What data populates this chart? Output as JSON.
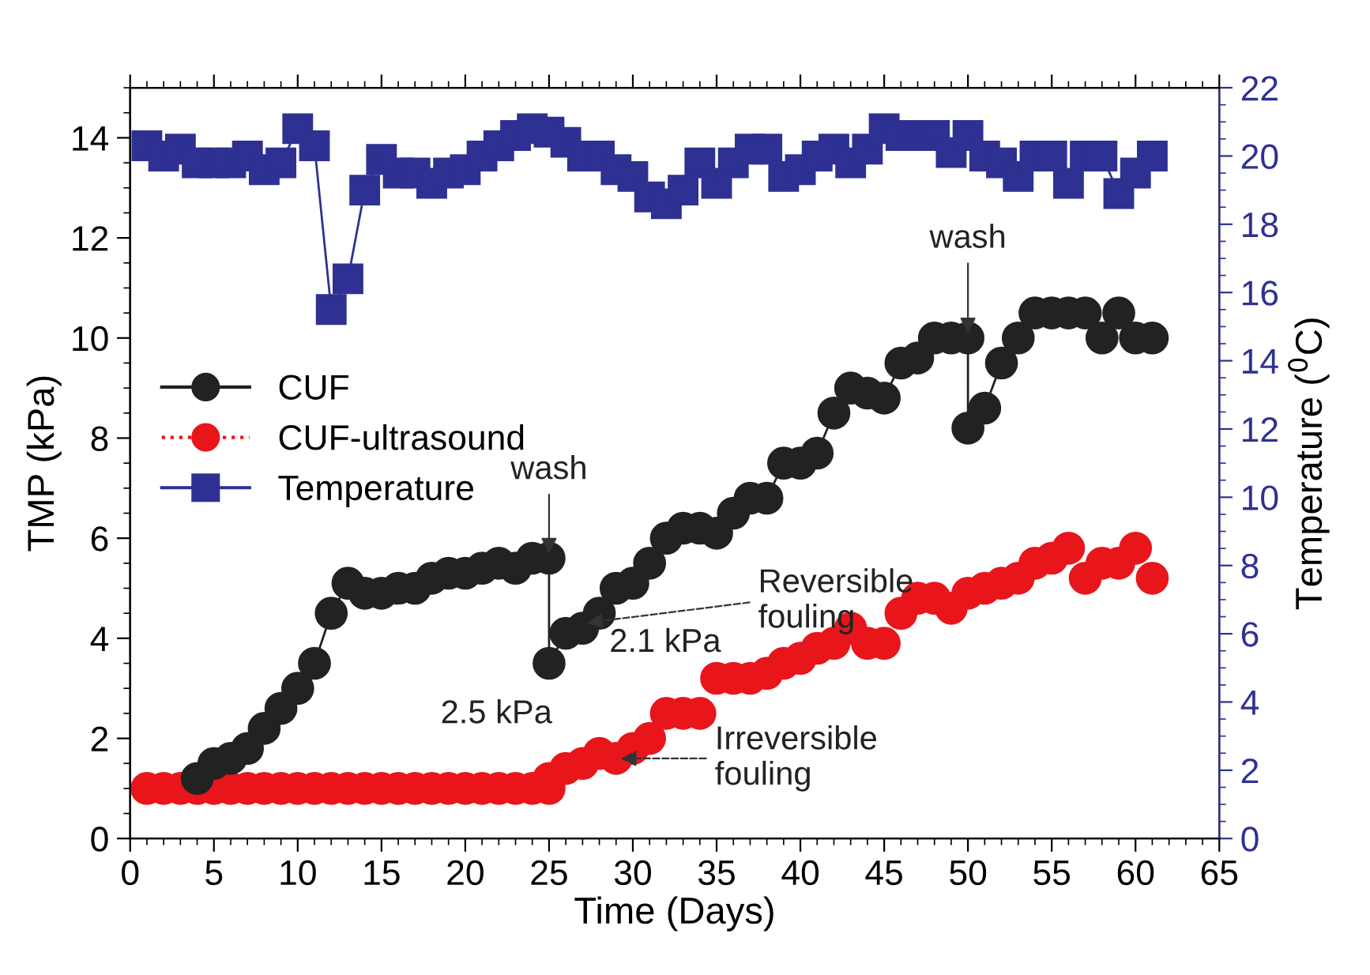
{
  "chart_data": {
    "type": "line",
    "xlabel": "Time (Days)",
    "ylabel": "TMP (kPa)",
    "y2label": "Temperature ($^{0}$C)",
    "xlim": [
      0,
      65
    ],
    "xticks": [
      0,
      5,
      10,
      15,
      20,
      25,
      30,
      35,
      40,
      45,
      50,
      55,
      60,
      65
    ],
    "ylim": [
      0,
      15
    ],
    "yticks": [
      0,
      2,
      4,
      6,
      8,
      10,
      12,
      14
    ],
    "y2lim": [
      0,
      22
    ],
    "y2ticks": [
      0,
      2,
      4,
      6,
      8,
      10,
      12,
      14,
      16,
      18,
      20,
      22
    ],
    "legend": "left",
    "grid": false,
    "series": [
      {
        "name": "CUF",
        "color": "#222222",
        "marker": "circle",
        "line_style": "solid",
        "x": [
          4,
          5,
          6,
          7,
          8,
          9,
          10,
          11,
          12,
          13,
          14,
          15,
          16,
          17,
          18,
          19,
          20,
          21,
          22,
          23,
          24,
          25,
          25,
          26,
          27,
          28,
          29,
          30,
          31,
          32,
          33,
          34,
          35,
          36,
          37,
          38,
          39,
          40,
          41,
          42,
          43,
          44,
          45,
          46,
          47,
          48,
          49,
          50,
          50,
          51,
          52,
          53,
          54,
          55,
          56,
          57,
          58,
          59,
          60,
          61
        ],
        "values": [
          1.2,
          1.5,
          1.6,
          1.8,
          2.2,
          2.6,
          3.0,
          3.5,
          4.5,
          5.1,
          4.9,
          4.9,
          5.0,
          5.0,
          5.2,
          5.3,
          5.3,
          5.4,
          5.5,
          5.4,
          5.6,
          5.6,
          3.5,
          4.1,
          4.2,
          4.5,
          5.0,
          5.1,
          5.5,
          6.0,
          6.2,
          6.2,
          6.1,
          6.5,
          6.8,
          6.8,
          7.5,
          7.5,
          7.7,
          8.5,
          9.0,
          8.9,
          8.8,
          9.5,
          9.6,
          10.0,
          10.0,
          10.0,
          8.2,
          8.6,
          9.5,
          10.0,
          10.5,
          10.5,
          10.5,
          10.5,
          10.0,
          10.5,
          10.0,
          10.0
        ]
      },
      {
        "name": "CUF-ultrasound",
        "type": "scatter",
        "color": "#e8161b",
        "marker": "circle",
        "line_style": "dotted",
        "x": [
          1,
          2,
          3,
          4,
          5,
          6,
          7,
          8,
          9,
          10,
          11,
          12,
          13,
          14,
          15,
          16,
          17,
          18,
          19,
          20,
          21,
          22,
          23,
          24,
          25,
          25,
          26,
          27,
          28,
          29,
          30,
          31,
          32,
          33,
          34,
          35,
          36,
          37,
          38,
          39,
          40,
          41,
          42,
          43,
          44,
          45,
          46,
          47,
          48,
          49,
          50,
          51,
          52,
          53,
          54,
          55,
          56,
          57,
          58,
          59,
          60,
          61
        ],
        "values": [
          1.0,
          1.0,
          1.0,
          1.0,
          1.0,
          1.0,
          1.0,
          1.0,
          1.0,
          1.0,
          1.0,
          1.0,
          1.0,
          1.0,
          1.0,
          1.0,
          1.0,
          1.0,
          1.0,
          1.0,
          1.0,
          1.0,
          1.0,
          1.0,
          1.0,
          1.2,
          1.4,
          1.5,
          1.7,
          1.6,
          1.8,
          2.0,
          2.5,
          2.5,
          2.5,
          3.2,
          3.2,
          3.2,
          3.3,
          3.5,
          3.6,
          3.8,
          3.9,
          4.2,
          3.9,
          3.9,
          4.5,
          4.8,
          4.8,
          4.6,
          4.9,
          5.0,
          5.1,
          5.2,
          5.5,
          5.6,
          5.8,
          5.2,
          5.5,
          5.5,
          5.8,
          5.2
        ]
      },
      {
        "name": "Temperature",
        "color": "#2e3192",
        "marker": "square",
        "line_style": "solid",
        "axis": "y2",
        "x": [
          1,
          2,
          3,
          4,
          5,
          6,
          7,
          8,
          9,
          10,
          11,
          12,
          13,
          14,
          15,
          16,
          17,
          18,
          19,
          20,
          21,
          22,
          23,
          24,
          25,
          26,
          27,
          28,
          29,
          30,
          31,
          32,
          33,
          34,
          35,
          36,
          37,
          38,
          39,
          40,
          41,
          42,
          43,
          44,
          45,
          46,
          47,
          48,
          49,
          50,
          51,
          52,
          53,
          54,
          55,
          56,
          57,
          58,
          59,
          60,
          61
        ],
        "values": [
          20.3,
          20.0,
          20.2,
          19.8,
          19.8,
          19.8,
          20.0,
          19.6,
          19.8,
          20.8,
          20.3,
          15.5,
          16.4,
          19.0,
          19.9,
          19.5,
          19.5,
          19.2,
          19.5,
          19.6,
          20.0,
          20.3,
          20.6,
          20.8,
          20.7,
          20.4,
          20.0,
          20.0,
          19.6,
          19.4,
          18.8,
          18.6,
          19.0,
          19.8,
          19.2,
          19.8,
          20.2,
          20.2,
          19.4,
          19.6,
          20.0,
          20.2,
          19.8,
          20.2,
          20.8,
          20.6,
          20.6,
          20.6,
          20.1,
          20.6,
          20.0,
          19.8,
          19.4,
          20.0,
          20.0,
          19.2,
          20.0,
          20.0,
          18.9,
          19.5,
          20.0
        ]
      }
    ],
    "annotations": [
      {
        "text": "wash",
        "x": 25,
        "y": 5.6
      },
      {
        "text": "wash",
        "x": 50,
        "y": 10.0
      },
      {
        "text": "Reversible\nfouling",
        "x": 27,
        "y": 4.3
      },
      "2.1 kPa",
      "2.5 kPa",
      {
        "text": "Irreversible\nfouling",
        "x": 29,
        "y": 1.6
      }
    ]
  }
}
